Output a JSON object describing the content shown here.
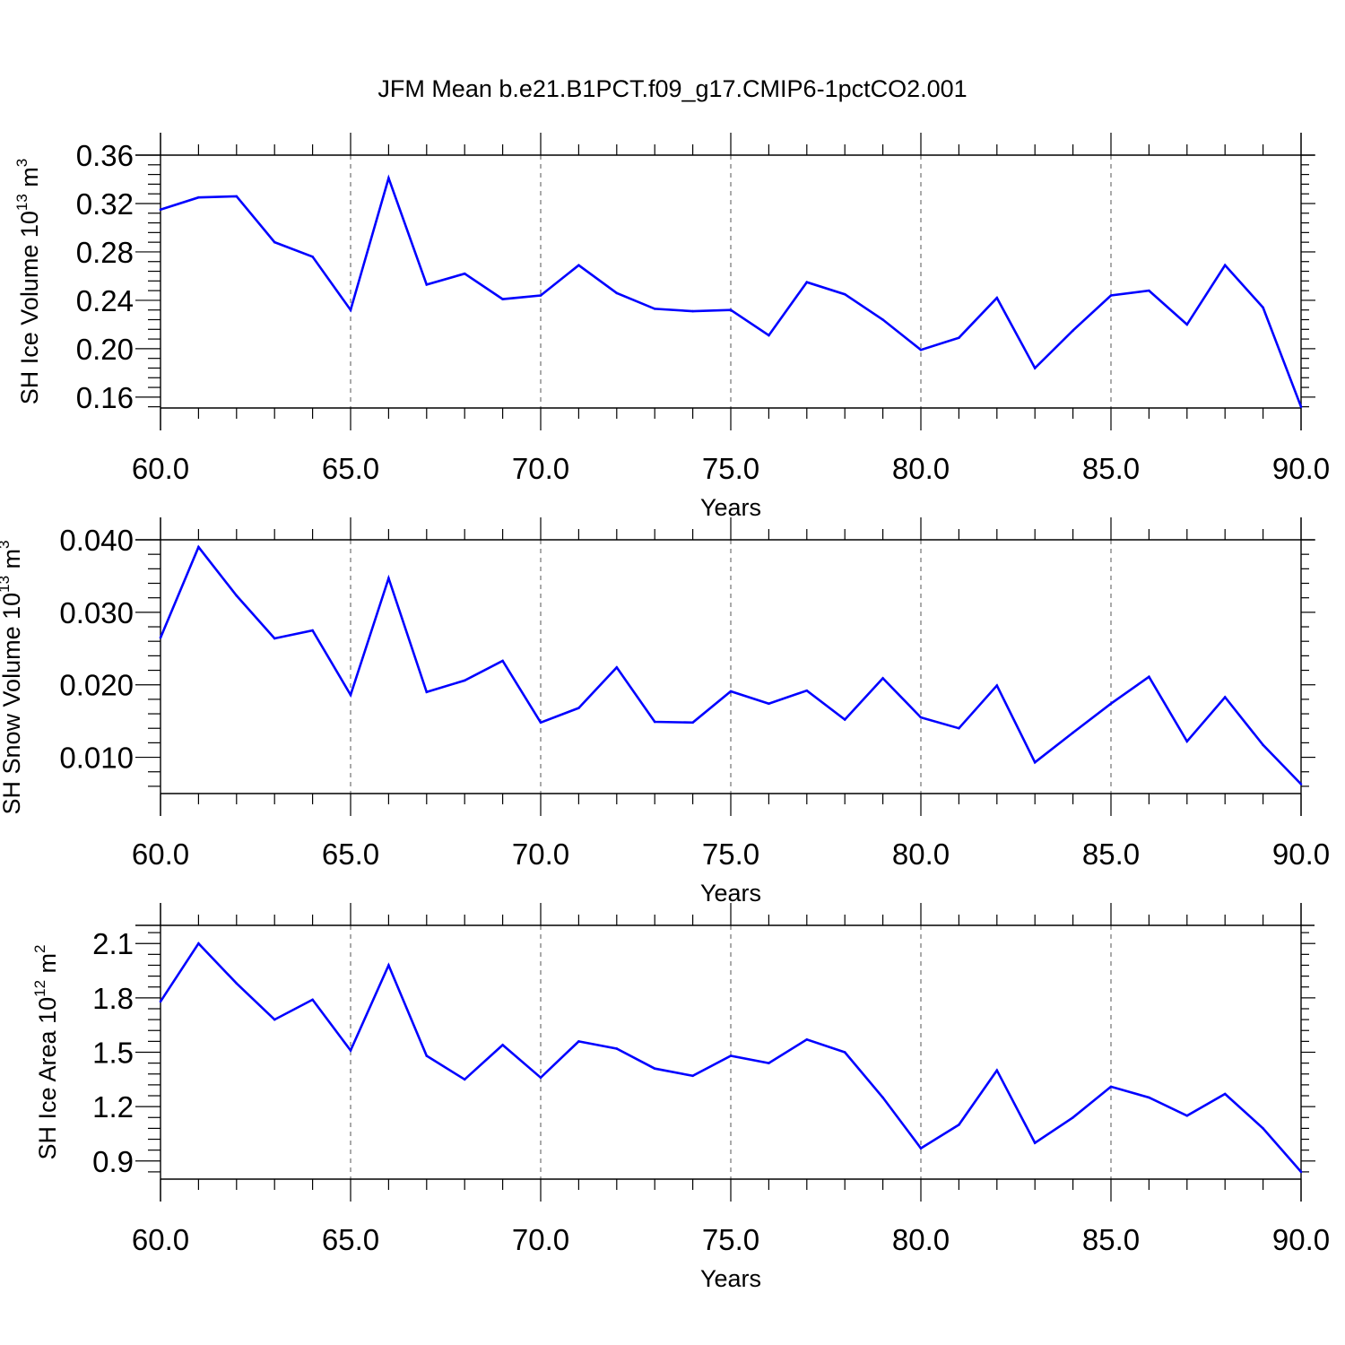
{
  "title": "JFM Mean b.e21.B1PCT.f09_g17.CMIP6-1pctCO2.001",
  "colors": {
    "line": "#0000ff",
    "axis": "#000000",
    "grid": "#555555"
  },
  "chart_data": [
    {
      "type": "line",
      "ylabel": {
        "text": "SH Ice Volume 10",
        "exp": "13",
        "unit": " m",
        "unit_exp": "3"
      },
      "xlabel": "Years",
      "xlim": [
        60,
        90
      ],
      "ylim": [
        0.151,
        0.36
      ],
      "x_ticks": [
        "60.0",
        "65.0",
        "70.0",
        "75.0",
        "80.0",
        "85.0",
        "90.0"
      ],
      "y_ticks": [
        "0.16",
        "0.20",
        "0.24",
        "0.28",
        "0.32",
        "0.36"
      ],
      "grid": "vertical dashed at major x ticks",
      "x": [
        60,
        61,
        62,
        63,
        64,
        65,
        66,
        67,
        68,
        69,
        70,
        71,
        72,
        73,
        74,
        75,
        76,
        77,
        78,
        79,
        80,
        81,
        82,
        83,
        84,
        85,
        86,
        87,
        88,
        89,
        90
      ],
      "series": [
        {
          "values": [
            0.315,
            0.325,
            0.326,
            0.288,
            0.276,
            0.232,
            0.341,
            0.253,
            0.262,
            0.241,
            0.244,
            0.269,
            0.246,
            0.233,
            0.231,
            0.232,
            0.211,
            0.255,
            0.245,
            0.224,
            0.199,
            0.209,
            0.242,
            0.184,
            0.215,
            0.244,
            0.248,
            0.22,
            0.269,
            0.234,
            0.152
          ]
        }
      ]
    },
    {
      "type": "line",
      "ylabel": {
        "text": "SH Snow Volume 10",
        "exp": "13",
        "unit": " m",
        "unit_exp": "3"
      },
      "xlabel": "Years",
      "xlim": [
        60,
        90
      ],
      "ylim": [
        0.005,
        0.04
      ],
      "x_ticks": [
        "60.0",
        "65.0",
        "70.0",
        "75.0",
        "80.0",
        "85.0",
        "90.0"
      ],
      "y_ticks": [
        "0.010",
        "0.020",
        "0.030",
        "0.040"
      ],
      "grid": "vertical dashed at major x ticks",
      "x": [
        60,
        61,
        62,
        63,
        64,
        65,
        66,
        67,
        68,
        69,
        70,
        71,
        72,
        73,
        74,
        75,
        76,
        77,
        78,
        79,
        80,
        81,
        82,
        83,
        84,
        85,
        86,
        87,
        88,
        89,
        90
      ],
      "series": [
        {
          "values": [
            0.0265,
            0.039,
            0.0323,
            0.0264,
            0.0275,
            0.0186,
            0.0347,
            0.019,
            0.0206,
            0.0233,
            0.0148,
            0.0168,
            0.0224,
            0.0149,
            0.0148,
            0.0191,
            0.0174,
            0.0192,
            0.0152,
            0.0209,
            0.0155,
            0.014,
            0.0199,
            0.0093,
            0.0134,
            0.0174,
            0.0211,
            0.0122,
            0.0183,
            0.0117,
            0.0063
          ]
        }
      ]
    },
    {
      "type": "line",
      "ylabel": {
        "text": "SH Ice Area 10",
        "exp": "12",
        "unit": " m",
        "unit_exp": "2"
      },
      "xlabel": "Years",
      "xlim": [
        60,
        90
      ],
      "ylim": [
        0.8,
        2.2
      ],
      "x_ticks": [
        "60.0",
        "65.0",
        "70.0",
        "75.0",
        "80.0",
        "85.0",
        "90.0"
      ],
      "y_ticks": [
        "0.9",
        "1.2",
        "1.5",
        "1.8",
        "2.1"
      ],
      "grid": "vertical dashed at major x ticks",
      "x": [
        60,
        61,
        62,
        63,
        64,
        65,
        66,
        67,
        68,
        69,
        70,
        71,
        72,
        73,
        74,
        75,
        76,
        77,
        78,
        79,
        80,
        81,
        82,
        83,
        84,
        85,
        86,
        87,
        88,
        89,
        90
      ],
      "series": [
        {
          "values": [
            1.78,
            2.1,
            1.88,
            1.68,
            1.79,
            1.51,
            1.98,
            1.48,
            1.35,
            1.54,
            1.36,
            1.56,
            1.52,
            1.41,
            1.37,
            1.48,
            1.44,
            1.57,
            1.5,
            1.25,
            0.97,
            1.1,
            1.4,
            1.0,
            1.14,
            1.31,
            1.25,
            1.15,
            1.27,
            1.08,
            0.84
          ]
        }
      ]
    }
  ]
}
